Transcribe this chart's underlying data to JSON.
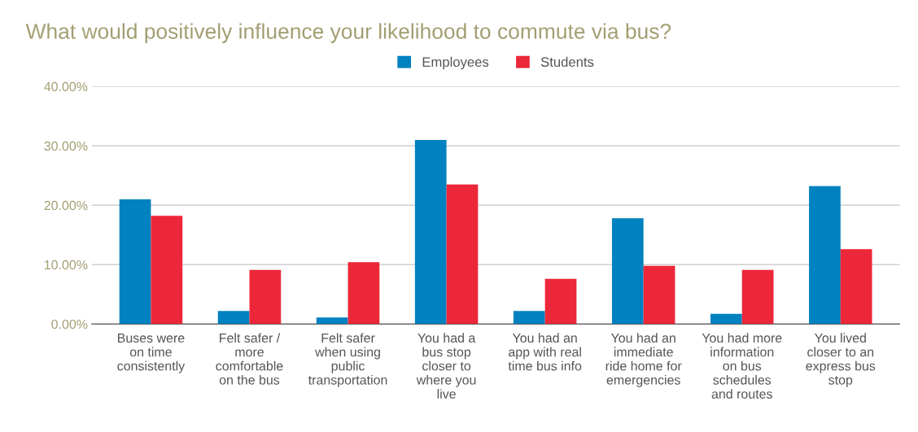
{
  "chart_data": {
    "type": "bar",
    "title": "What would positively influence your likelihood to commute via bus?",
    "categories": [
      "Buses were on time consistently",
      "Felt safer / more comfortable on the bus",
      "Felt safer when using public transportation",
      "You had a bus stop closer to where you live",
      "You had an app with real time bus info",
      "You had an immediate ride home for emergencies",
      "You had more information on bus schedules and routes",
      "You lived closer to an express bus stop"
    ],
    "series": [
      {
        "name": "Employees",
        "color": "#0081c0",
        "values": [
          21.0,
          2.2,
          1.1,
          31.0,
          2.2,
          17.8,
          1.7,
          23.2
        ]
      },
      {
        "name": "Students",
        "color": "#ec2739",
        "values": [
          18.2,
          9.1,
          10.4,
          23.5,
          7.6,
          9.8,
          9.1,
          12.6
        ]
      }
    ],
    "ylim": [
      0,
      40
    ],
    "yticks": [
      {
        "value": 0,
        "label": "0.00%"
      },
      {
        "value": 10,
        "label": "10.00%"
      },
      {
        "value": 20,
        "label": "20.00%"
      },
      {
        "value": 30,
        "label": "30.00%"
      },
      {
        "value": 40,
        "label": "40.00%"
      }
    ],
    "grid": "y",
    "legend": "top"
  }
}
